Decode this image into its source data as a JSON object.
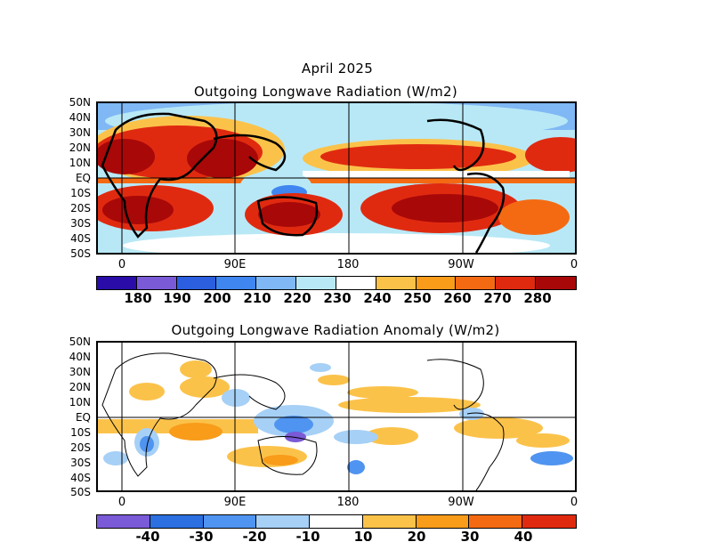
{
  "header": {
    "period": "April 2025",
    "title_top": "Outgoing Longwave Radiation (W/m2)",
    "title_bottom": "Outgoing Longwave Radiation Anomaly (W/m2)"
  },
  "axes": {
    "lat_labels": [
      "50N",
      "40N",
      "30N",
      "20N",
      "10N",
      "EQ",
      "10S",
      "20S",
      "30S",
      "40S",
      "50S"
    ],
    "lon_labels": [
      "0",
      "90E",
      "180",
      "90W",
      "0"
    ]
  },
  "colorbar_top": {
    "labels": [
      "180",
      "190",
      "200",
      "210",
      "220",
      "230",
      "240",
      "250",
      "260",
      "270",
      "280"
    ],
    "colors": [
      "#2a0ca8",
      "#7a5ad6",
      "#2b5fe0",
      "#3f86f0",
      "#7fb8f4",
      "#b8e8f6",
      "#ffffff",
      "#fbc24a",
      "#f89c1a",
      "#f46a12",
      "#e02a10",
      "#a80808"
    ]
  },
  "colorbar_bottom": {
    "labels": [
      "-40",
      "-30",
      "-20",
      "-10",
      "10",
      "20",
      "30",
      "40"
    ],
    "colors": [
      "#7a5ad6",
      "#2b6fe0",
      "#4f94f0",
      "#a6d0f6",
      "#ffffff",
      "#fbc24a",
      "#f89c1a",
      "#f46a12",
      "#e02a10"
    ]
  }
}
